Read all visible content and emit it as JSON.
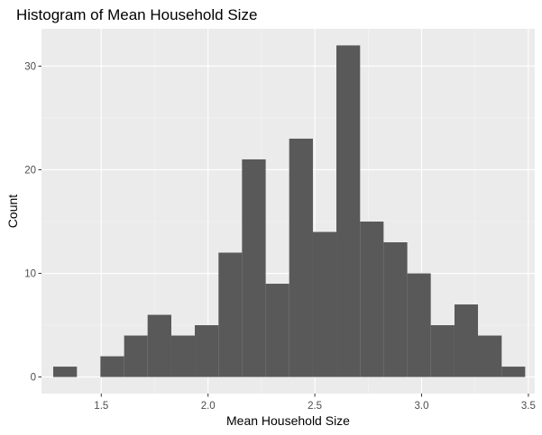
{
  "chart_data": {
    "type": "bar",
    "subtype": "histogram",
    "title": "Histogram of Mean Household Size",
    "xlabel": "Mean Household Size",
    "ylabel": "Count",
    "xlim": [
      1.22,
      3.53
    ],
    "ylim": [
      -1.6,
      33.6
    ],
    "xticks": [
      1.5,
      2.0,
      2.5,
      3.0,
      3.5
    ],
    "xtick_labels": [
      "1.5",
      "2.0",
      "2.5",
      "3.0",
      "3.5"
    ],
    "yticks": [
      0,
      10,
      20,
      30
    ],
    "ytick_labels": [
      "0",
      "10",
      "20",
      "30"
    ],
    "grid": true,
    "legend": "none",
    "bin_width": 0.1105,
    "bins": [
      {
        "x0": 1.275,
        "x1": 1.386,
        "count": 1
      },
      {
        "x0": 1.386,
        "x1": 1.496,
        "count": 0
      },
      {
        "x0": 1.496,
        "x1": 1.607,
        "count": 2
      },
      {
        "x0": 1.607,
        "x1": 1.717,
        "count": 4
      },
      {
        "x0": 1.717,
        "x1": 1.828,
        "count": 6
      },
      {
        "x0": 1.828,
        "x1": 1.938,
        "count": 4
      },
      {
        "x0": 1.938,
        "x1": 2.049,
        "count": 5
      },
      {
        "x0": 2.049,
        "x1": 2.159,
        "count": 12
      },
      {
        "x0": 2.159,
        "x1": 2.27,
        "count": 21
      },
      {
        "x0": 2.27,
        "x1": 2.38,
        "count": 9
      },
      {
        "x0": 2.38,
        "x1": 2.491,
        "count": 23
      },
      {
        "x0": 2.491,
        "x1": 2.601,
        "count": 14
      },
      {
        "x0": 2.601,
        "x1": 2.712,
        "count": 32
      },
      {
        "x0": 2.712,
        "x1": 2.822,
        "count": 15
      },
      {
        "x0": 2.822,
        "x1": 2.933,
        "count": 13
      },
      {
        "x0": 2.933,
        "x1": 3.043,
        "count": 10
      },
      {
        "x0": 3.043,
        "x1": 3.154,
        "count": 5
      },
      {
        "x0": 3.154,
        "x1": 3.264,
        "count": 7
      },
      {
        "x0": 3.264,
        "x1": 3.375,
        "count": 4
      },
      {
        "x0": 3.375,
        "x1": 3.485,
        "count": 1
      }
    ],
    "colors": {
      "bar": "#595959",
      "panel_background": "#ebebeb",
      "grid_major": "#ffffff",
      "grid_minor": "#f5f5f5",
      "tick": "#333333"
    }
  }
}
